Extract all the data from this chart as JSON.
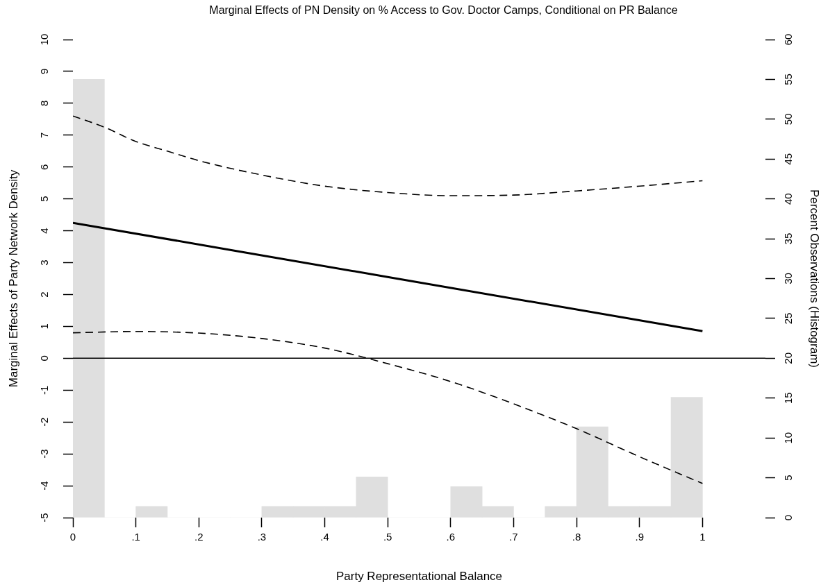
{
  "chart_data": {
    "type": "line",
    "title": "Marginal Effects of PN Density on % Access to Gov. Doctor Camps, Conditional on PR Balance",
    "xlabel": "Party Representational Balance",
    "ylabel": "Marginal Effects of Party Network Density",
    "y2label": "Percent Observations (Histogram)",
    "xlim": [
      0,
      1.1
    ],
    "xticks": [
      0,
      {
        "value": 0.1,
        "label": ".1"
      },
      {
        "value": 0.2,
        "label": ".2"
      },
      {
        "value": 0.3,
        "label": ".3"
      },
      {
        "value": 0.4,
        "label": ".4"
      },
      {
        "value": 0.5,
        "label": ".5"
      },
      {
        "value": 0.6,
        "label": ".6"
      },
      {
        "value": 0.7,
        "label": ".7"
      },
      {
        "value": 0.8,
        "label": ".8"
      },
      {
        "value": 0.9,
        "label": ".9"
      },
      1
    ],
    "ylim": [
      -5,
      10
    ],
    "yticks": [
      -5,
      -4,
      -3,
      -2,
      -1,
      0,
      1,
      2,
      3,
      4,
      5,
      6,
      7,
      8,
      9,
      10
    ],
    "y2lim": [
      0,
      60
    ],
    "y2ticks": [
      0,
      5,
      10,
      15,
      20,
      25,
      30,
      35,
      40,
      45,
      50,
      55,
      60
    ],
    "marker": "none",
    "ref_lines": [
      {
        "axis": "y",
        "value": 0,
        "color": "#000000"
      }
    ],
    "series": [
      {
        "type": "histogram",
        "axis": "y2",
        "color": "#dfdfdf",
        "bins": [
          0,
          0.05,
          0.1,
          0.15,
          0.2,
          0.25,
          0.3,
          0.35,
          0.4,
          0.45,
          0.5,
          0.55,
          0.6,
          0.65,
          0.7,
          0.75,
          0.8,
          0.85,
          0.9,
          0.95,
          1
        ],
        "values": [
          55,
          0,
          1.4,
          0,
          0,
          0,
          1.4,
          1.4,
          1.4,
          5.1,
          0,
          0,
          3.9,
          1.4,
          0,
          1.4,
          11.4,
          1.4,
          1.4,
          15.1
        ]
      },
      {
        "color": "#000000",
        "line_style": "solid",
        "x": [
          0,
          0.5,
          1
        ],
        "values": [
          4.25,
          2.55,
          0.85
        ]
      },
      {
        "color": "#000000",
        "line_style": "dashed",
        "x": [
          0,
          0.05,
          0.1,
          0.15,
          0.2,
          0.3,
          0.4,
          0.5,
          0.6,
          0.7,
          0.8,
          0.9,
          1
        ],
        "values": [
          7.6,
          7.25,
          6.8,
          6.5,
          6.2,
          5.75,
          5.4,
          5.2,
          5.1,
          5.12,
          5.25,
          5.4,
          5.57
        ]
      },
      {
        "color": "#000000",
        "line_style": "dashed",
        "x": [
          0,
          0.1,
          0.2,
          0.3,
          0.4,
          0.5,
          0.6,
          0.7,
          0.8,
          0.9,
          1
        ],
        "values": [
          0.8,
          0.84,
          0.79,
          0.62,
          0.32,
          -0.17,
          -0.73,
          -1.43,
          -2.21,
          -3.09,
          -3.93
        ]
      }
    ]
  }
}
